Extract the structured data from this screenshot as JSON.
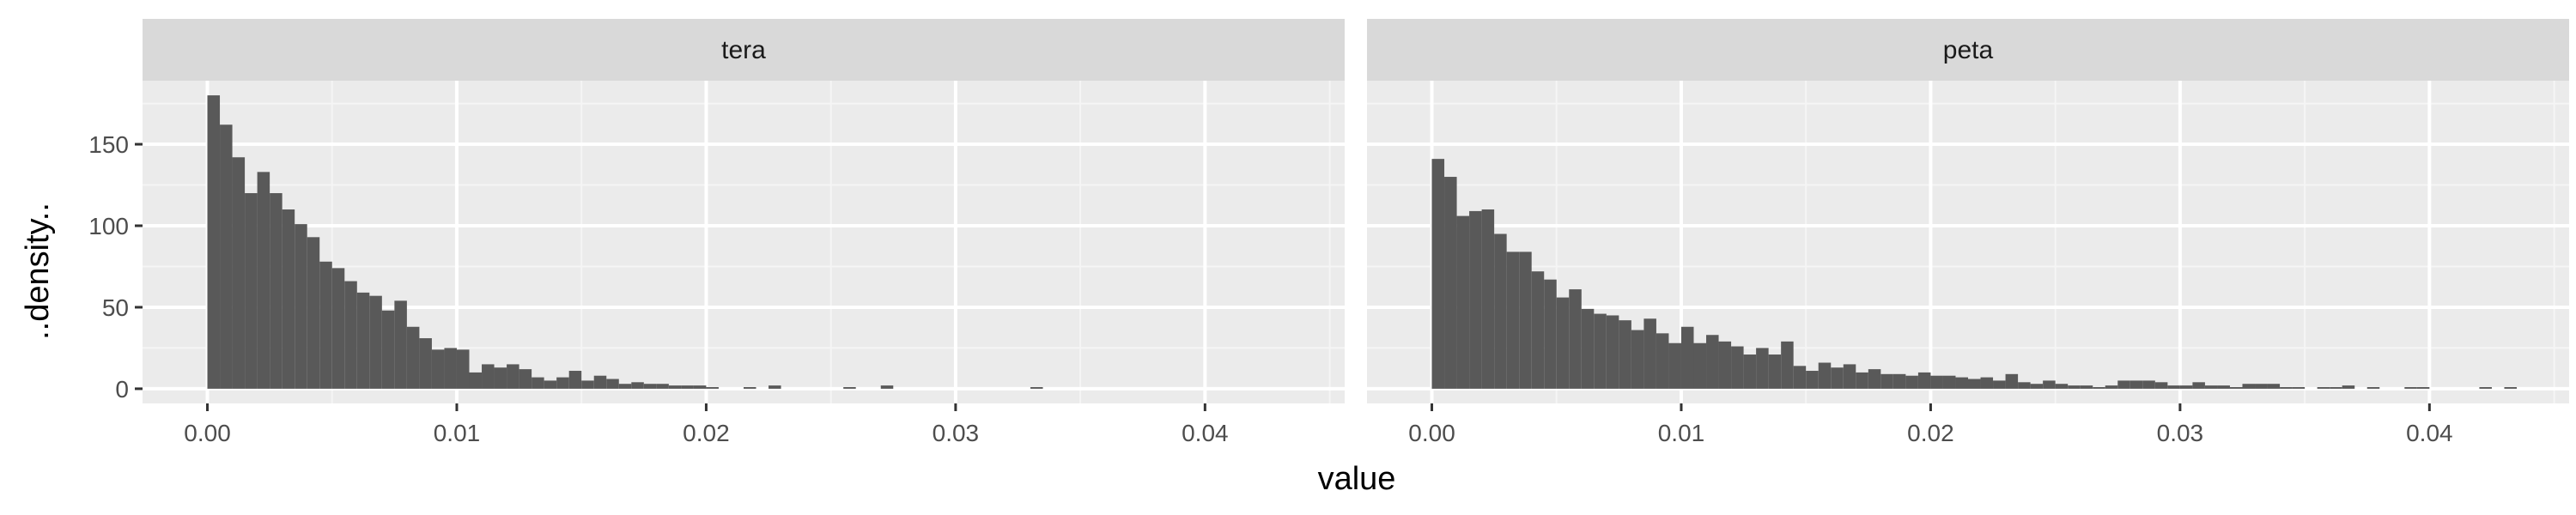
{
  "chart_data": {
    "type": "histogram",
    "xlabel": "value",
    "ylabel": "..density..",
    "xlim": [
      -0.0026,
      0.0456
    ],
    "ylim": [
      -9,
      189
    ],
    "x_ticks": [
      0.0,
      0.01,
      0.02,
      0.03,
      0.04
    ],
    "x_tick_labels": [
      "0.00",
      "0.01",
      "0.02",
      "0.03",
      "0.04"
    ],
    "y_ticks": [
      0,
      50,
      100,
      150
    ],
    "y_tick_labels": [
      "0",
      "50",
      "100",
      "150"
    ],
    "grid": true,
    "legend": "none",
    "colors": {
      "bar": "#595959",
      "panel": "#ebebeb",
      "grid_major": "#ffffff",
      "strip": "#d9d9d9"
    },
    "bin_width": 0.0005,
    "bin_start": 0.0,
    "facets": [
      {
        "label": "tera",
        "density": [
          180,
          162,
          142,
          120,
          133,
          120,
          110,
          101,
          93,
          78,
          74,
          66,
          59,
          57,
          48,
          54,
          38,
          31,
          24,
          25,
          24,
          10,
          15,
          13,
          15,
          12,
          7,
          5,
          7,
          11,
          5,
          8,
          6,
          3,
          4,
          3,
          3,
          2,
          2,
          2,
          1,
          0,
          0,
          1,
          0,
          2,
          0,
          0,
          0,
          0,
          0,
          1,
          0,
          0,
          2,
          0,
          0,
          0,
          0,
          0,
          0,
          0,
          0,
          0,
          0,
          0,
          1,
          0,
          0,
          0,
          0,
          0,
          0,
          0,
          0,
          0,
          0,
          0,
          0,
          0,
          0,
          0,
          0,
          0,
          0,
          0,
          0
        ]
      },
      {
        "label": "peta",
        "density": [
          141,
          130,
          106,
          109,
          110,
          95,
          84,
          84,
          72,
          67,
          56,
          61,
          49,
          46,
          45,
          42,
          36,
          43,
          34,
          28,
          38,
          28,
          33,
          29,
          26,
          21,
          25,
          21,
          29,
          14,
          11,
          16,
          13,
          15,
          10,
          12,
          9,
          9,
          8,
          10,
          8,
          8,
          7,
          6,
          7,
          5,
          9,
          4,
          3,
          5,
          3,
          2,
          2,
          1,
          2,
          5,
          5,
          5,
          4,
          2,
          2,
          4,
          2,
          2,
          1,
          3,
          3,
          3,
          1,
          1,
          0,
          1,
          1,
          2,
          0,
          1,
          0,
          0,
          1,
          1,
          0,
          0,
          0,
          0,
          1,
          0,
          1
        ]
      }
    ]
  }
}
